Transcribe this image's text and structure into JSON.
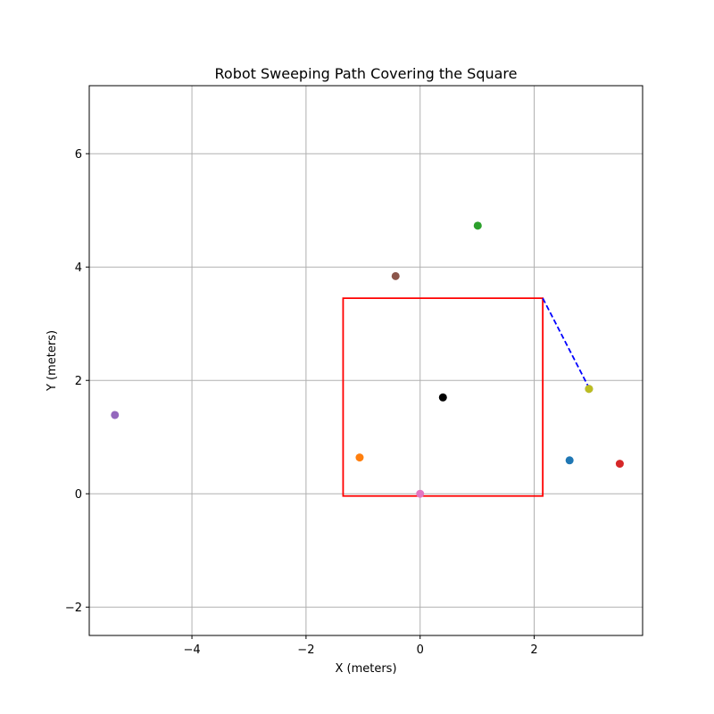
{
  "chart_data": {
    "type": "scatter",
    "title": "Robot Sweeping Path Covering the Square",
    "xlabel": "X (meters)",
    "ylabel": "Y (meters)",
    "xlim": [
      -5.8,
      3.9
    ],
    "ylim": [
      -2.5,
      7.2
    ],
    "xticks": [
      -4,
      -2,
      0,
      2
    ],
    "yticks": [
      -2,
      0,
      2,
      4,
      6
    ],
    "xtick_labels": [
      "−4",
      "−2",
      "0",
      "2"
    ],
    "ytick_labels": [
      "−2",
      "0",
      "2",
      "4",
      "6"
    ],
    "grid": true,
    "square": {
      "color": "#ff0000",
      "corners": [
        [
          -1.35,
          -0.04
        ],
        [
          2.15,
          -0.04
        ],
        [
          2.15,
          3.45
        ],
        [
          -1.35,
          3.45
        ]
      ]
    },
    "path": {
      "color": "#0000ff",
      "style": "dashed",
      "points": [
        [
          2.15,
          3.45
        ],
        [
          2.97,
          1.85
        ]
      ]
    },
    "center": {
      "x": 0.4,
      "y": 1.7,
      "color": "#000000"
    },
    "points": [
      {
        "x": 2.62,
        "y": 0.59,
        "color": "#1f77b4"
      },
      {
        "x": -1.06,
        "y": 0.64,
        "color": "#ff7f0e"
      },
      {
        "x": 1.01,
        "y": 4.73,
        "color": "#2ca02c"
      },
      {
        "x": 3.5,
        "y": 0.53,
        "color": "#d62728"
      },
      {
        "x": -5.35,
        "y": 1.39,
        "color": "#9467bd"
      },
      {
        "x": -0.43,
        "y": 3.84,
        "color": "#8c564b"
      },
      {
        "x": 0.0,
        "y": 0.0,
        "color": "#e377c2"
      },
      {
        "x": 2.96,
        "y": 1.85,
        "color": "#7f7f7f"
      },
      {
        "x": 2.96,
        "y": 1.85,
        "color": "#bcbd22"
      }
    ]
  }
}
